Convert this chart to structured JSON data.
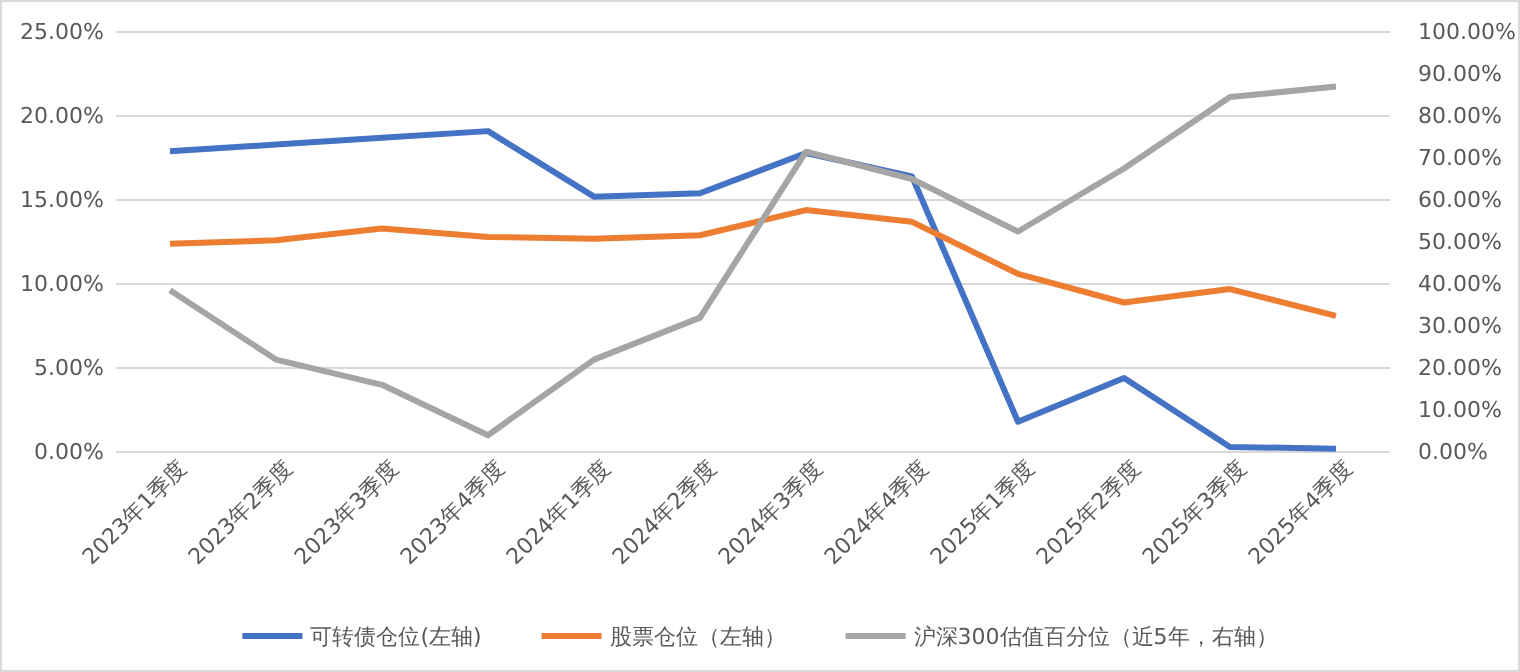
{
  "chart_data": {
    "type": "line",
    "categories": [
      "2023年1季度",
      "2023年2季度",
      "2023年3季度",
      "2023年4季度",
      "2024年1季度",
      "2024年2季度",
      "2024年3季度",
      "2024年4季度",
      "2025年1季度",
      "2025年2季度",
      "2025年3季度",
      "2025年4季度"
    ],
    "series": [
      {
        "name": "可转债仓位(左轴)",
        "color": "#4472c4",
        "values": [
          17.9,
          18.3,
          18.7,
          19.1,
          15.2,
          15.4,
          17.8,
          16.4,
          1.8,
          4.4,
          0.3,
          0.2
        ]
      },
      {
        "name": "股票仓位（左轴）",
        "color": "#ed7d31",
        "values": [
          12.4,
          12.6,
          13.3,
          12.8,
          12.7,
          12.9,
          14.4,
          13.7,
          10.6,
          8.9,
          9.7,
          8.1
        ]
      },
      {
        "name": "沪深300估值百分位（近5年，右轴）",
        "color": "#a5a5a5",
        "axis": "y2",
        "values": [
          38.5,
          22,
          16,
          4,
          22,
          32,
          71.5,
          65,
          52.5,
          67.5,
          84.5,
          87
        ]
      }
    ],
    "ylim": [
      0,
      25
    ],
    "yticks": [
      {
        "value": 0,
        "label": "0.00%"
      },
      {
        "value": 5,
        "label": "5.00%"
      },
      {
        "value": 10,
        "label": "10.00%"
      },
      {
        "value": 15,
        "label": "15.00%"
      },
      {
        "value": 20,
        "label": "20.00%"
      },
      {
        "value": 25,
        "label": "25.00%"
      }
    ],
    "y2lim": [
      0,
      100
    ],
    "y2ticks": [
      {
        "value": 0,
        "label": "0.00%"
      },
      {
        "value": 10,
        "label": "10.00%"
      },
      {
        "value": 20,
        "label": "20.00%"
      },
      {
        "value": 30,
        "label": "30.00%"
      },
      {
        "value": 40,
        "label": "40.00%"
      },
      {
        "value": 50,
        "label": "50.00%"
      },
      {
        "value": 60,
        "label": "60.00%"
      },
      {
        "value": 70,
        "label": "70.00%"
      },
      {
        "value": 80,
        "label": "80.00%"
      },
      {
        "value": 90,
        "label": "90.00%"
      },
      {
        "value": 100,
        "label": "100.00%"
      }
    ],
    "grid": "y",
    "legend": "bottom",
    "marker": "none",
    "line_style": "solid"
  }
}
